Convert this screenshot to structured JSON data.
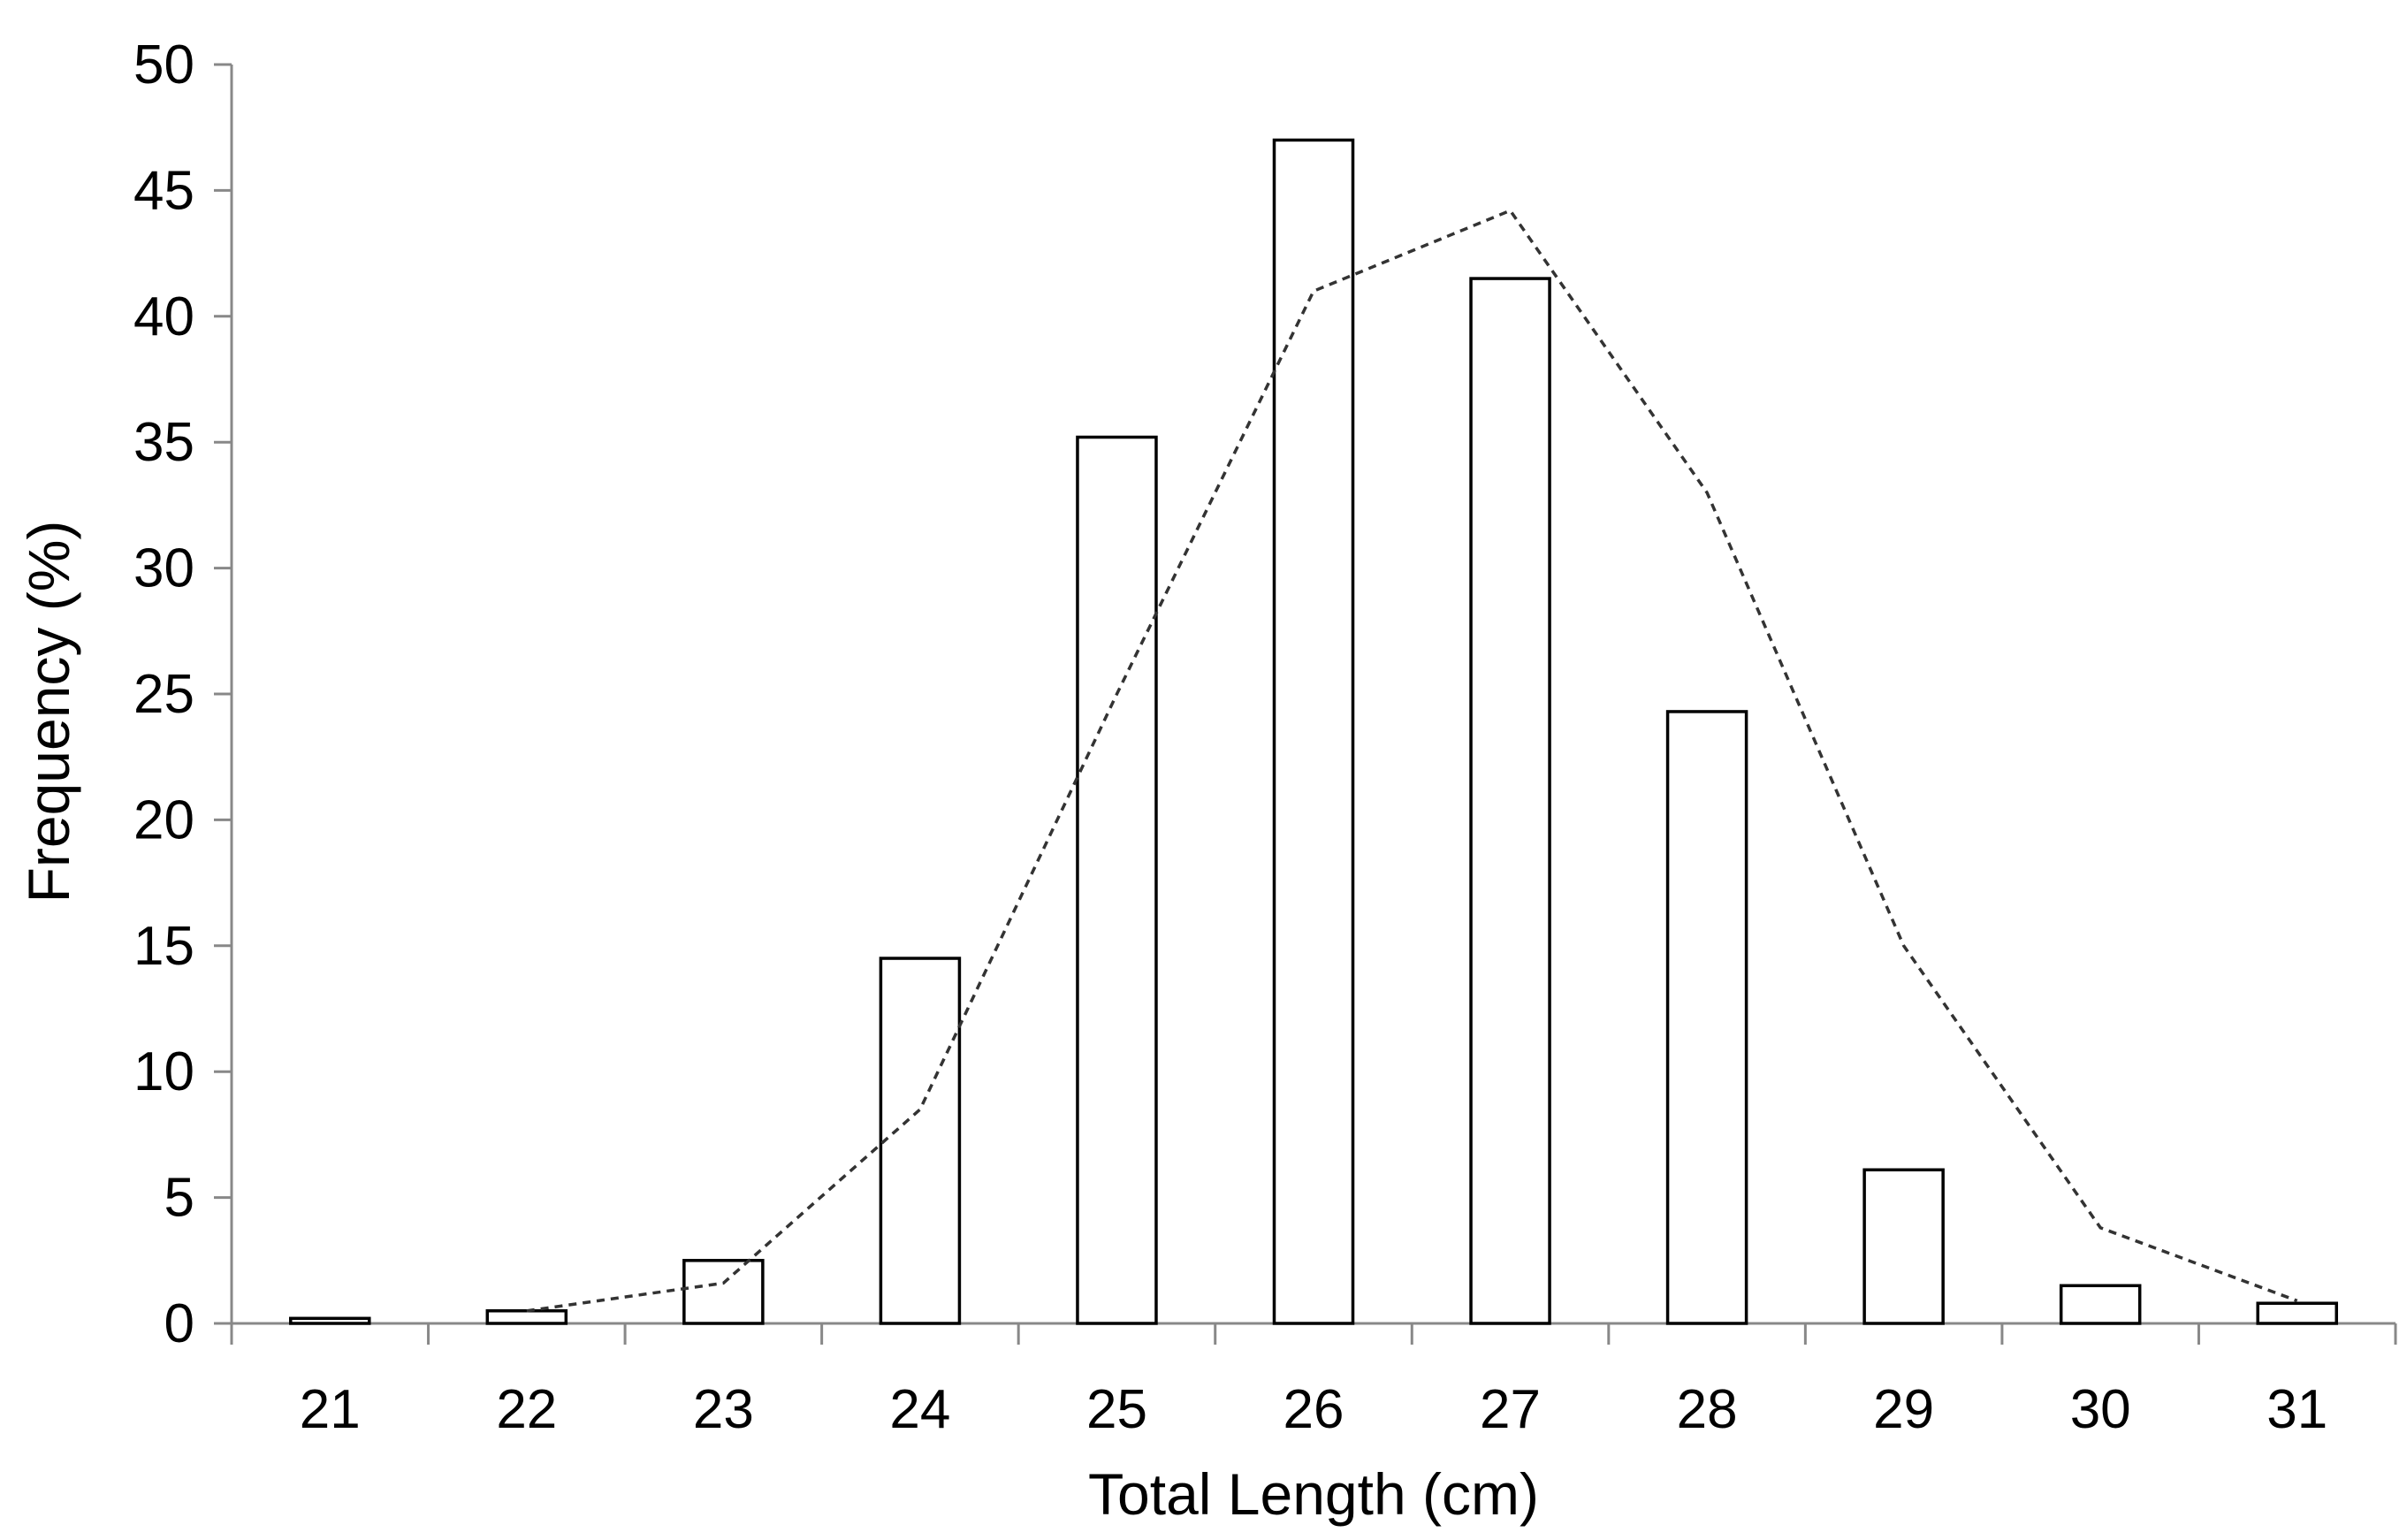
{
  "chart_data": {
    "type": "bar",
    "xlabel": "Total Length (cm)",
    "ylabel": "Frequency (%)",
    "categories": [
      "21",
      "22",
      "23",
      "24",
      "25",
      "26",
      "27",
      "28",
      "29",
      "30",
      "31"
    ],
    "series": [
      {
        "type": "bar",
        "values": [
          0.2,
          0.5,
          2.5,
          14.5,
          35.2,
          47.0,
          41.5,
          24.3,
          6.1,
          1.5,
          0.8
        ]
      },
      {
        "type": "line",
        "style": "dashed",
        "values": [
          null,
          0.5,
          1.6,
          8.5,
          25.0,
          41.0,
          44.2,
          33.0,
          15.0,
          3.8,
          0.9
        ]
      }
    ],
    "ylim": [
      0,
      50
    ],
    "yticks": [
      "0",
      "5",
      "10",
      "15",
      "20",
      "25",
      "30",
      "35",
      "40",
      "45",
      "50"
    ],
    "grid": false,
    "legend": "none"
  }
}
